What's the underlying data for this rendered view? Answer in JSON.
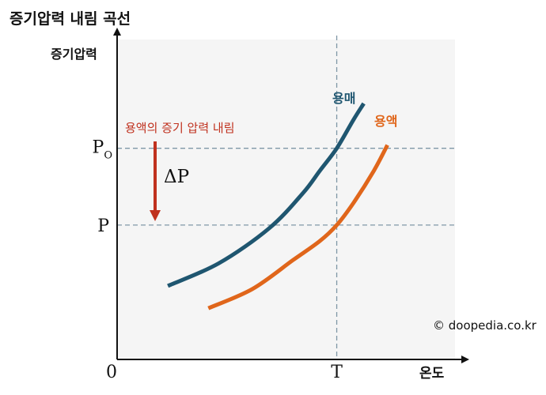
{
  "chart_data": {
    "type": "line",
    "title": "증기압력 내림 곡선",
    "ylabel": "증기압력",
    "xlabel": "온도",
    "origin_label": "0",
    "grid": false,
    "ticks": {
      "x": [
        {
          "label": "T",
          "value": 0.65
        }
      ],
      "y": [
        {
          "label": "P",
          "subscript": "O",
          "value": 0.66
        },
        {
          "label": "P",
          "subscript": "",
          "value": 0.42
        }
      ]
    },
    "series": [
      {
        "name": "용매",
        "color": "#1f5670",
        "x": [
          0.15,
          0.3,
          0.45,
          0.55,
          0.6,
          0.65,
          0.7,
          0.73
        ],
        "y": [
          0.23,
          0.3,
          0.41,
          0.52,
          0.59,
          0.66,
          0.75,
          0.8
        ]
      },
      {
        "name": "용액",
        "color": "#e0661b",
        "x": [
          0.27,
          0.4,
          0.52,
          0.6,
          0.65,
          0.7,
          0.76,
          0.8
        ],
        "y": [
          0.16,
          0.22,
          0.31,
          0.37,
          0.42,
          0.49,
          0.59,
          0.67
        ]
      }
    ],
    "annotations": [
      {
        "text": "용액의 증기 압력 내림",
        "color": "#c0311e"
      },
      {
        "text": "ΔP",
        "color": "#111111"
      }
    ],
    "xlim": [
      0,
      1
    ],
    "ylim": [
      0,
      1
    ]
  },
  "copyright": "© doopedia.co.kr",
  "colors": {
    "plot_background": "#f5f5f5",
    "guide_line": "#7f97a6",
    "arrow": "#c0311e"
  }
}
